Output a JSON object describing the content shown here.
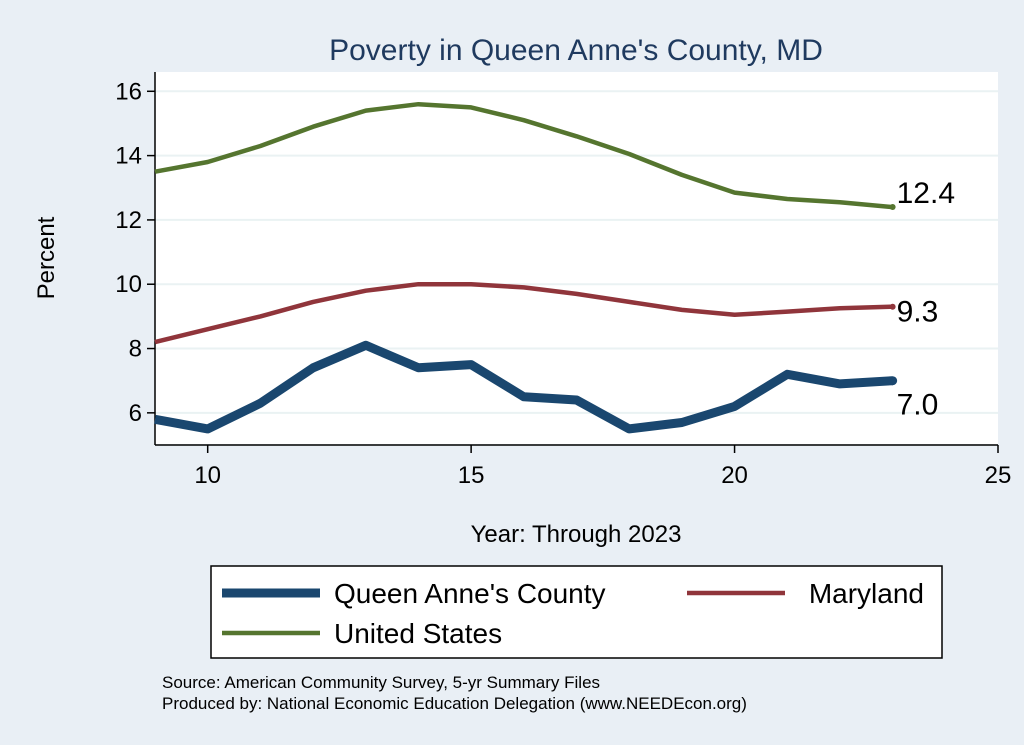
{
  "chart_data": {
    "type": "line",
    "title": "Poverty in Queen Anne's County, MD",
    "xlabel": "Year: Through 2023",
    "ylabel": "Percent",
    "xlim": [
      9,
      25
    ],
    "ylim": [
      5,
      16.6
    ],
    "xticks": [
      10,
      15,
      20,
      25
    ],
    "yticks": [
      6,
      8,
      10,
      12,
      14,
      16
    ],
    "grid": "horizontal",
    "legend_position": "bottom",
    "series": [
      {
        "name": "Queen Anne's County",
        "color": "#1a476f",
        "width": "thick",
        "x": [
          9,
          10,
          11,
          12,
          13,
          14,
          15,
          16,
          17,
          18,
          19,
          20,
          21,
          22,
          23
        ],
        "values": [
          5.8,
          5.5,
          6.3,
          7.4,
          8.1,
          7.4,
          7.5,
          6.5,
          6.4,
          5.5,
          5.7,
          6.2,
          7.2,
          6.9,
          7.0
        ],
        "end_label": "7.0"
      },
      {
        "name": "Maryland",
        "color": "#90353b",
        "width": "medium",
        "x": [
          9,
          10,
          11,
          12,
          13,
          14,
          15,
          16,
          17,
          18,
          19,
          20,
          21,
          22,
          23
        ],
        "values": [
          8.2,
          8.6,
          9.0,
          9.45,
          9.8,
          10.0,
          10.0,
          9.9,
          9.7,
          9.45,
          9.2,
          9.05,
          9.15,
          9.25,
          9.3
        ],
        "end_label": "9.3"
      },
      {
        "name": "United States",
        "color": "#55752f",
        "width": "medium",
        "x": [
          9,
          10,
          11,
          12,
          13,
          14,
          15,
          16,
          17,
          18,
          19,
          20,
          21,
          22,
          23
        ],
        "values": [
          13.5,
          13.8,
          14.3,
          14.9,
          15.4,
          15.6,
          15.5,
          15.1,
          14.6,
          14.05,
          13.4,
          12.85,
          12.65,
          12.55,
          12.4
        ],
        "end_label": "12.4"
      }
    ]
  },
  "legend": {
    "items": [
      {
        "label": "Queen Anne's County",
        "color": "#1a476f",
        "width": "thick"
      },
      {
        "label": "Maryland",
        "color": "#90353b",
        "width": "medium"
      },
      {
        "label": "United States",
        "color": "#55752f",
        "width": "medium"
      }
    ]
  },
  "notes": {
    "source": "Source: American Community Survey, 5-yr Summary Files",
    "produced_by": "Produced by: National Economic Education Delegation (www.NEEDEcon.org)"
  }
}
